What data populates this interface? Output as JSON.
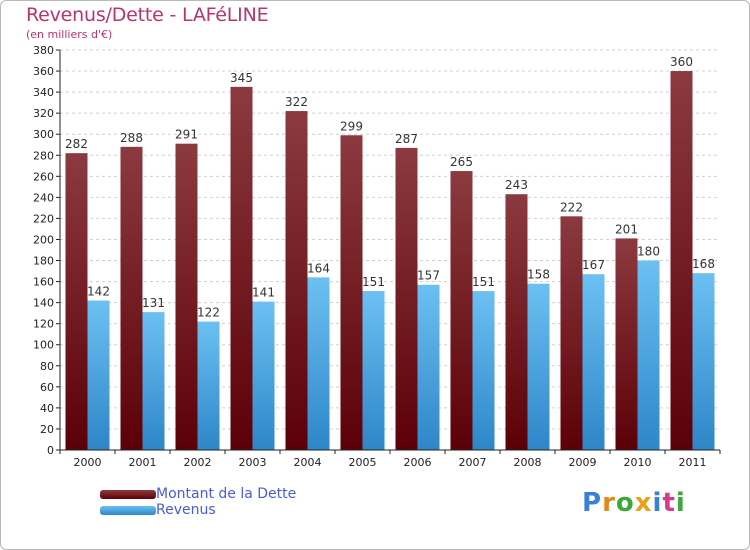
{
  "title": "Revenus/Dette - LAFéLINE",
  "subtitle": "(en milliers d'€)",
  "logo": {
    "text": "Proxiti",
    "letter_colors": [
      "#3a7fd8",
      "#e08a1e",
      "#3aa83a",
      "#e8a21a",
      "#3a7fd8",
      "#d83a8a",
      "#3aa83a"
    ]
  },
  "colors": {
    "debt_top": "#8b3a3f",
    "debt_bottom": "#5c0008",
    "revenue_top": "#6cc0f2",
    "revenue_bottom": "#2e86c8",
    "grid": "#cfcfcf"
  },
  "chart_data": {
    "type": "bar",
    "categories": [
      "2000",
      "2001",
      "2002",
      "2003",
      "2004",
      "2005",
      "2006",
      "2007",
      "2008",
      "2009",
      "2010",
      "2011"
    ],
    "series": [
      {
        "name": "Montant de la Dette",
        "values": [
          282,
          288,
          291,
          345,
          322,
          299,
          287,
          265,
          243,
          222,
          201,
          360
        ]
      },
      {
        "name": "Revenus",
        "values": [
          142,
          131,
          122,
          141,
          164,
          151,
          157,
          151,
          158,
          167,
          180,
          168
        ]
      }
    ],
    "ylim": [
      0,
      380
    ],
    "ytick_step": 20,
    "grid": true,
    "legend_position": "bottom-left"
  }
}
